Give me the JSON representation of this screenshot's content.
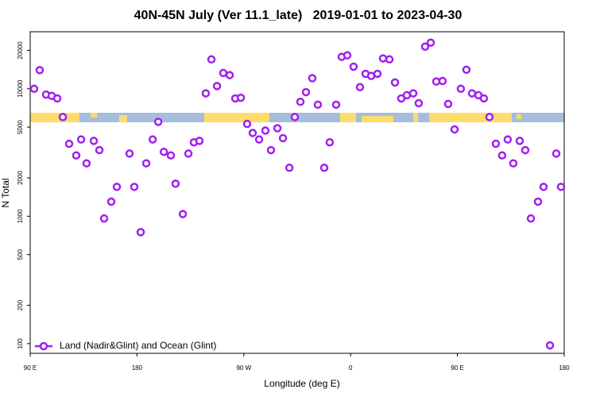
{
  "chart_data": {
    "type": "scatter",
    "title": "40N-45N July (Ver 11.1_late)   2019-01-01 to 2023-04-30",
    "xlabel": "Longitude (deg E)",
    "ylabel": "N Total",
    "log_y": true,
    "legend": "lower left",
    "xlim": [
      90,
      540
    ],
    "xticks": [
      {
        "value": 90,
        "label": "90 E"
      },
      180,
      {
        "value": 270,
        "label": "90 W"
      },
      {
        "value": 360,
        "label": "0"
      },
      {
        "value": 450,
        "label": "90 E"
      },
      {
        "value": 540,
        "label": "180"
      }
    ],
    "ylim": [
      84,
      28000
    ],
    "yticks": [
      100,
      200,
      500,
      1000,
      2000,
      5000,
      10000,
      20000
    ],
    "x": [
      93.3,
      98.0,
      103.4,
      108.1,
      112.8,
      117.5,
      122.8,
      128.8,
      132.9,
      137.5,
      143.6,
      148.3,
      152.3,
      158.3,
      163.0,
      173.7,
      177.7,
      183.1,
      187.8,
      193.2,
      197.9,
      202.6,
      208.5,
      212.5,
      218.6,
      223.3,
      227.9,
      232.6,
      238.0,
      242.7,
      247.4,
      252.7,
      258.1,
      262.8,
      267.5,
      272.8,
      277.5,
      282.9,
      288.2,
      292.9,
      298.3,
      303.0,
      308.4,
      313.0,
      317.7,
      322.4,
      327.7,
      332.4,
      337.8,
      342.4,
      347.8,
      352.5,
      357.2,
      362.5,
      367.9,
      372.6,
      377.3,
      382.6,
      387.3,
      392.7,
      397.4,
      402.7,
      407.4,
      412.8,
      417.4,
      422.8,
      427.5,
      432.2,
      437.5,
      442.2,
      447.6,
      452.9,
      457.6,
      462.3,
      467.7,
      472.3,
      477.0,
      482.4,
      487.7,
      492.4,
      497.1,
      502.5,
      507.2,
      511.9,
      517.9,
      522.6,
      528.0,
      533.3,
      537.3
    ],
    "series": [
      {
        "name": "Land (Nadir&Glint) and Ocean (Glint)",
        "color": "#a020f0",
        "values": [
          10000,
          14000,
          9000,
          8800,
          8400,
          6000,
          3700,
          3000,
          4000,
          2600,
          3900,
          3300,
          960,
          1300,
          1700,
          3100,
          1700,
          750,
          2600,
          4000,
          5500,
          3200,
          3000,
          1800,
          1040,
          3100,
          3800,
          3900,
          9200,
          17000,
          10500,
          13300,
          12800,
          8400,
          8500,
          5300,
          4500,
          4000,
          4700,
          3300,
          4900,
          4100,
          2400,
          6000,
          7900,
          9400,
          12100,
          7500,
          2400,
          3800,
          7500,
          17800,
          18300,
          14900,
          10300,
          13100,
          12600,
          13100,
          17300,
          17000,
          11200,
          8400,
          8900,
          9200,
          7700,
          21400,
          23000,
          11400,
          11500,
          7600,
          4800,
          10000,
          14100,
          9200,
          8900,
          8400,
          6000,
          3700,
          3000,
          4000,
          2600,
          3900,
          3300,
          960,
          1300,
          1700,
          97,
          3100,
          1700
        ]
      }
    ]
  }
}
